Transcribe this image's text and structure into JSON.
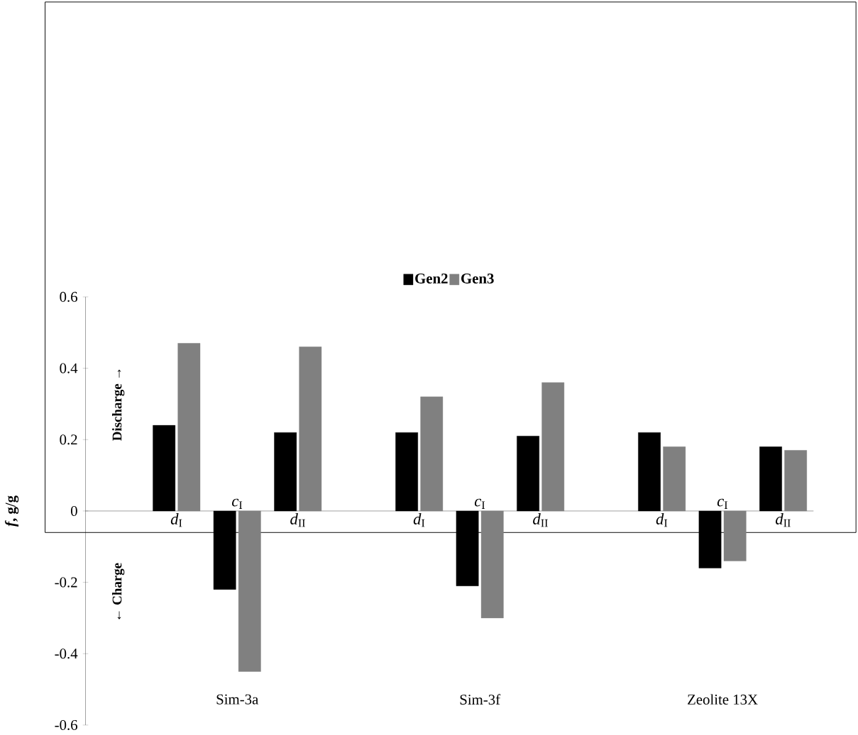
{
  "chart_data": {
    "type": "bar",
    "categories": [
      null,
      "*d*$_{I}$",
      "*c*$_{I}$",
      "*d*$_{II}$",
      null,
      "*d*$_{I}$",
      "*c*$_{I}$",
      "*d*$_{II}$",
      null,
      "*d*$_{I}$",
      "*c*$_{I}$",
      "*d*$_{II}$"
    ],
    "series": [
      {
        "name": "Gen2",
        "color": "#000000",
        "values": [
          null,
          0.24,
          -0.22,
          0.22,
          null,
          0.22,
          -0.21,
          0.21,
          null,
          0.22,
          -0.16,
          0.18
        ]
      },
      {
        "name": "Gen3",
        "color": "#808080",
        "values": [
          null,
          0.47,
          -0.45,
          0.46,
          null,
          0.32,
          -0.3,
          0.36,
          null,
          0.18,
          -0.14,
          0.17
        ]
      }
    ],
    "ylabel": "*f*, g/g",
    "ylim": [
      -0.6,
      0.6
    ],
    "yticks": [
      -0.6,
      -0.4,
      -0.2,
      0,
      0.2,
      0.4,
      0.6
    ],
    "grid": false,
    "legend": "top",
    "annotations": [
      "Sim-3a",
      "Sim-3f",
      "Zeolite 13X",
      "Discharge →",
      "← Charge"
    ]
  }
}
